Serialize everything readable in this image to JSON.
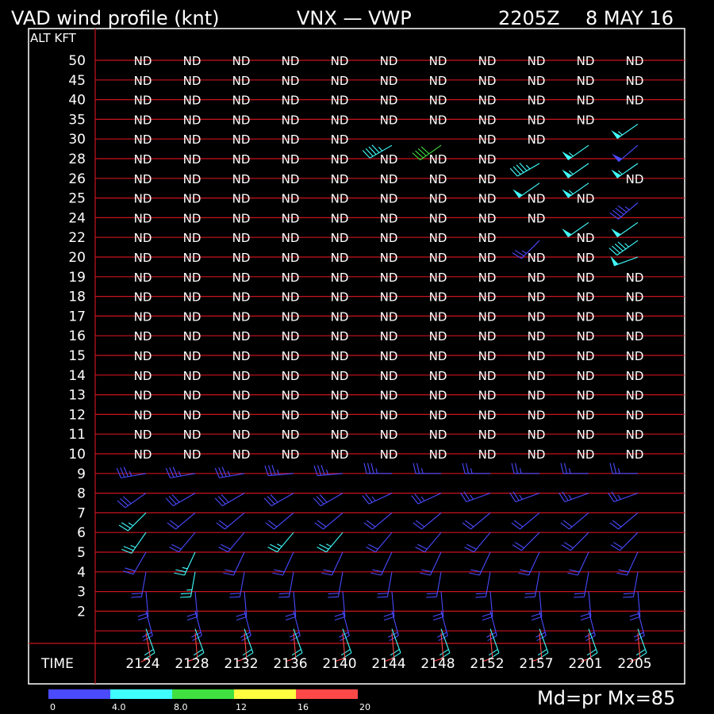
{
  "header": {
    "title": "VAD wind profile (knt)",
    "station": "VNX — VWP",
    "time": "2205Z",
    "date": "8 MAY 16"
  },
  "axis": {
    "alt_label": "ALT KFT",
    "time_label": "TIME"
  },
  "footer": {
    "mode_text": "Md=pr Mx=85"
  },
  "colors": {
    "background": "#000000",
    "frame": "#ffffff",
    "gridline": "#c8141e",
    "text": "#ffffff"
  },
  "chart_data": {
    "type": "wind-barb-profile",
    "nodata_label": "ND",
    "times": [
      "2124",
      "2128",
      "2132",
      "2136",
      "2140",
      "2144",
      "2148",
      "2152",
      "2157",
      "2201",
      "2205"
    ],
    "altitudes_kft": [
      "50",
      "45",
      "40",
      "35",
      "30",
      "28",
      "26",
      "25",
      "24",
      "22",
      "20",
      "19",
      "18",
      "17",
      "16",
      "15",
      "14",
      "13",
      "12",
      "11",
      "10",
      "9",
      "8",
      "7",
      "6",
      "5",
      "4",
      "3",
      "2",
      ""
    ],
    "legend": {
      "ticks": [
        "0",
        "4.0",
        "8.0",
        "12",
        "16",
        "20"
      ],
      "colors": [
        "#4a4aff",
        "#40ffff",
        "#40e040",
        "#ffff40",
        "#ff4848"
      ]
    },
    "barb_rows": [
      {
        "alt": "30",
        "cells": [
          null,
          null,
          null,
          null,
          null,
          {
            "dir": 240,
            "spd": 45,
            "c": 1
          },
          {
            "dir": 235,
            "spd": 40,
            "c": 2
          },
          null,
          null,
          null,
          null
        ]
      },
      {
        "alt": "35",
        "cells": [
          null,
          null,
          null,
          null,
          null,
          null,
          null,
          null,
          null,
          null,
          {
            "dir": 235,
            "spd": 55,
            "c": 1
          }
        ]
      },
      {
        "alt": "30b",
        "cells": [
          null,
          null,
          null,
          null,
          null,
          null,
          null,
          null,
          null,
          {
            "dir": 235,
            "spd": 55,
            "c": 1
          },
          {
            "dir": 230,
            "spd": 50,
            "c": 0
          }
        ]
      },
      {
        "alt": "28",
        "cells": [
          null,
          null,
          null,
          null,
          null,
          null,
          null,
          null,
          {
            "dir": 240,
            "spd": 45,
            "c": 1
          },
          {
            "dir": 235,
            "spd": 55,
            "c": 1
          },
          {
            "dir": 235,
            "spd": 55,
            "c": 1
          }
        ]
      },
      {
        "alt": "26",
        "cells": [
          null,
          null,
          null,
          null,
          null,
          null,
          null,
          null,
          {
            "dir": 235,
            "spd": 50,
            "c": 1
          },
          {
            "dir": 235,
            "spd": 55,
            "c": 1
          },
          null
        ]
      },
      {
        "alt": "25",
        "cells": [
          null,
          null,
          null,
          null,
          null,
          null,
          null,
          null,
          null,
          null,
          {
            "dir": 230,
            "spd": 45,
            "c": 0
          }
        ]
      },
      {
        "alt": "24",
        "cells": [
          null,
          null,
          null,
          null,
          null,
          null,
          null,
          null,
          null,
          {
            "dir": 235,
            "spd": 50,
            "c": 1
          },
          {
            "dir": 235,
            "spd": 50,
            "c": 1
          }
        ]
      },
      {
        "alt": "22",
        "cells": [
          null,
          null,
          null,
          null,
          null,
          null,
          null,
          null,
          {
            "dir": 225,
            "spd": 25,
            "c": 0
          },
          null,
          {
            "dir": 235,
            "spd": 45,
            "c": 1
          }
        ]
      },
      {
        "alt": "20",
        "cells": [
          null,
          null,
          null,
          null,
          null,
          null,
          null,
          null,
          null,
          null,
          {
            "dir": 250,
            "spd": 50,
            "c": 1
          }
        ]
      },
      {
        "alt": "9",
        "cells": [
          {
            "dir": 260,
            "spd": 35,
            "c": 0
          },
          {
            "dir": 260,
            "spd": 35,
            "c": 0
          },
          {
            "dir": 260,
            "spd": 35,
            "c": 0
          },
          {
            "dir": 265,
            "spd": 35,
            "c": 0
          },
          {
            "dir": 265,
            "spd": 35,
            "c": 0
          },
          {
            "dir": 270,
            "spd": 35,
            "c": 0
          },
          {
            "dir": 270,
            "spd": 25,
            "c": 0
          },
          {
            "dir": 270,
            "spd": 25,
            "c": 0
          },
          {
            "dir": 270,
            "spd": 25,
            "c": 0
          },
          {
            "dir": 270,
            "spd": 25,
            "c": 0
          },
          {
            "dir": 270,
            "spd": 25,
            "c": 0
          }
        ]
      },
      {
        "alt": "8",
        "cells": [
          {
            "dir": 235,
            "spd": 30,
            "c": 0
          },
          {
            "dir": 240,
            "spd": 30,
            "c": 0
          },
          {
            "dir": 240,
            "spd": 30,
            "c": 0
          },
          {
            "dir": 240,
            "spd": 30,
            "c": 0
          },
          {
            "dir": 240,
            "spd": 30,
            "c": 0
          },
          {
            "dir": 245,
            "spd": 25,
            "c": 0
          },
          {
            "dir": 245,
            "spd": 25,
            "c": 0
          },
          {
            "dir": 250,
            "spd": 25,
            "c": 0
          },
          {
            "dir": 250,
            "spd": 25,
            "c": 0
          },
          {
            "dir": 250,
            "spd": 25,
            "c": 0
          },
          {
            "dir": 250,
            "spd": 25,
            "c": 0
          }
        ]
      },
      {
        "alt": "7",
        "cells": [
          {
            "dir": 225,
            "spd": 25,
            "c": 1
          },
          {
            "dir": 230,
            "spd": 20,
            "c": 0
          },
          {
            "dir": 230,
            "spd": 20,
            "c": 0
          },
          {
            "dir": 230,
            "spd": 20,
            "c": 0
          },
          {
            "dir": 230,
            "spd": 20,
            "c": 0
          },
          {
            "dir": 230,
            "spd": 20,
            "c": 0
          },
          {
            "dir": 230,
            "spd": 20,
            "c": 0
          },
          {
            "dir": 230,
            "spd": 20,
            "c": 0
          },
          {
            "dir": 230,
            "spd": 20,
            "c": 0
          },
          {
            "dir": 230,
            "spd": 20,
            "c": 0
          },
          {
            "dir": 230,
            "spd": 20,
            "c": 0
          }
        ]
      },
      {
        "alt": "6",
        "cells": [
          {
            "dir": 215,
            "spd": 25,
            "c": 1
          },
          {
            "dir": 220,
            "spd": 20,
            "c": 0
          },
          {
            "dir": 220,
            "spd": 20,
            "c": 0
          },
          {
            "dir": 220,
            "spd": 25,
            "c": 1
          },
          {
            "dir": 220,
            "spd": 25,
            "c": 1
          },
          {
            "dir": 220,
            "spd": 20,
            "c": 0
          },
          {
            "dir": 220,
            "spd": 20,
            "c": 0
          },
          {
            "dir": 220,
            "spd": 20,
            "c": 0
          },
          {
            "dir": 225,
            "spd": 20,
            "c": 0
          },
          {
            "dir": 225,
            "spd": 20,
            "c": 0
          },
          {
            "dir": 225,
            "spd": 20,
            "c": 0
          }
        ]
      },
      {
        "alt": "5",
        "cells": [
          {
            "dir": 210,
            "spd": 20,
            "c": 0
          },
          {
            "dir": 205,
            "spd": 25,
            "c": 1
          },
          {
            "dir": 205,
            "spd": 20,
            "c": 0
          },
          {
            "dir": 205,
            "spd": 20,
            "c": 0
          },
          {
            "dir": 205,
            "spd": 20,
            "c": 0
          },
          {
            "dir": 205,
            "spd": 20,
            "c": 0
          },
          {
            "dir": 205,
            "spd": 20,
            "c": 0
          },
          {
            "dir": 205,
            "spd": 20,
            "c": 0
          },
          {
            "dir": 205,
            "spd": 20,
            "c": 0
          },
          {
            "dir": 205,
            "spd": 20,
            "c": 0
          },
          {
            "dir": 205,
            "spd": 20,
            "c": 0
          }
        ]
      },
      {
        "alt": "4",
        "cells": [
          {
            "dir": 190,
            "spd": 20,
            "c": 0
          },
          {
            "dir": 190,
            "spd": 25,
            "c": 1
          },
          {
            "dir": 190,
            "spd": 20,
            "c": 0
          },
          {
            "dir": 190,
            "spd": 20,
            "c": 0
          },
          {
            "dir": 190,
            "spd": 20,
            "c": 0
          },
          {
            "dir": 190,
            "spd": 20,
            "c": 0
          },
          {
            "dir": 190,
            "spd": 20,
            "c": 0
          },
          {
            "dir": 190,
            "spd": 20,
            "c": 0
          },
          {
            "dir": 190,
            "spd": 20,
            "c": 0
          },
          {
            "dir": 190,
            "spd": 20,
            "c": 0
          },
          {
            "dir": 190,
            "spd": 20,
            "c": 0
          }
        ]
      },
      {
        "alt": "3",
        "cells": [
          {
            "dir": 175,
            "spd": 20,
            "c": 0
          },
          {
            "dir": 175,
            "spd": 20,
            "c": 0
          },
          {
            "dir": 175,
            "spd": 20,
            "c": 0
          },
          {
            "dir": 175,
            "spd": 20,
            "c": 0
          },
          {
            "dir": 175,
            "spd": 20,
            "c": 0
          },
          {
            "dir": 175,
            "spd": 20,
            "c": 0
          },
          {
            "dir": 175,
            "spd": 20,
            "c": 0
          },
          {
            "dir": 175,
            "spd": 20,
            "c": 0
          },
          {
            "dir": 175,
            "spd": 20,
            "c": 0
          },
          {
            "dir": 175,
            "spd": 20,
            "c": 0
          },
          {
            "dir": 175,
            "spd": 20,
            "c": 0
          }
        ]
      },
      {
        "alt": "2",
        "cells": [
          {
            "dir": 165,
            "spd": 20,
            "c": 0
          },
          {
            "dir": 165,
            "spd": 20,
            "c": 0
          },
          {
            "dir": 165,
            "spd": 20,
            "c": 0
          },
          {
            "dir": 165,
            "spd": 20,
            "c": 0
          },
          {
            "dir": 165,
            "spd": 20,
            "c": 0
          },
          {
            "dir": 165,
            "spd": 20,
            "c": 0
          },
          {
            "dir": 165,
            "spd": 20,
            "c": 0
          },
          {
            "dir": 165,
            "spd": 20,
            "c": 0
          },
          {
            "dir": 165,
            "spd": 20,
            "c": 0
          },
          {
            "dir": 165,
            "spd": 20,
            "c": 0
          },
          {
            "dir": 165,
            "spd": 20,
            "c": 0
          }
        ]
      },
      {
        "alt": "1",
        "cells": [
          {
            "dir": 160,
            "spd": 20,
            "c": 1
          },
          {
            "dir": 160,
            "spd": 20,
            "c": 1
          },
          {
            "dir": 160,
            "spd": 20,
            "c": 1
          },
          {
            "dir": 160,
            "spd": 20,
            "c": 1
          },
          {
            "dir": 160,
            "spd": 20,
            "c": 1
          },
          {
            "dir": 160,
            "spd": 20,
            "c": 1
          },
          {
            "dir": 160,
            "spd": 20,
            "c": 1
          },
          {
            "dir": 160,
            "spd": 20,
            "c": 1
          },
          {
            "dir": 160,
            "spd": 20,
            "c": 1
          },
          {
            "dir": 160,
            "spd": 20,
            "c": 1
          },
          {
            "dir": 160,
            "spd": 20,
            "c": 1
          }
        ]
      },
      {
        "alt": "0",
        "cells": [
          {
            "dir": 170,
            "spd": 10,
            "c": 4
          },
          {
            "dir": 175,
            "spd": 10,
            "c": 4
          },
          {
            "dir": 175,
            "spd": 10,
            "c": 4
          },
          {
            "dir": 175,
            "spd": 10,
            "c": 4
          },
          {
            "dir": 175,
            "spd": 10,
            "c": 4
          },
          {
            "dir": 175,
            "spd": 10,
            "c": 4
          },
          {
            "dir": 175,
            "spd": 10,
            "c": 4
          },
          {
            "dir": 175,
            "spd": 10,
            "c": 4
          },
          {
            "dir": 175,
            "spd": 10,
            "c": 4
          },
          {
            "dir": 175,
            "spd": 10,
            "c": 4
          },
          {
            "dir": 175,
            "spd": 10,
            "c": 4
          }
        ]
      }
    ]
  }
}
